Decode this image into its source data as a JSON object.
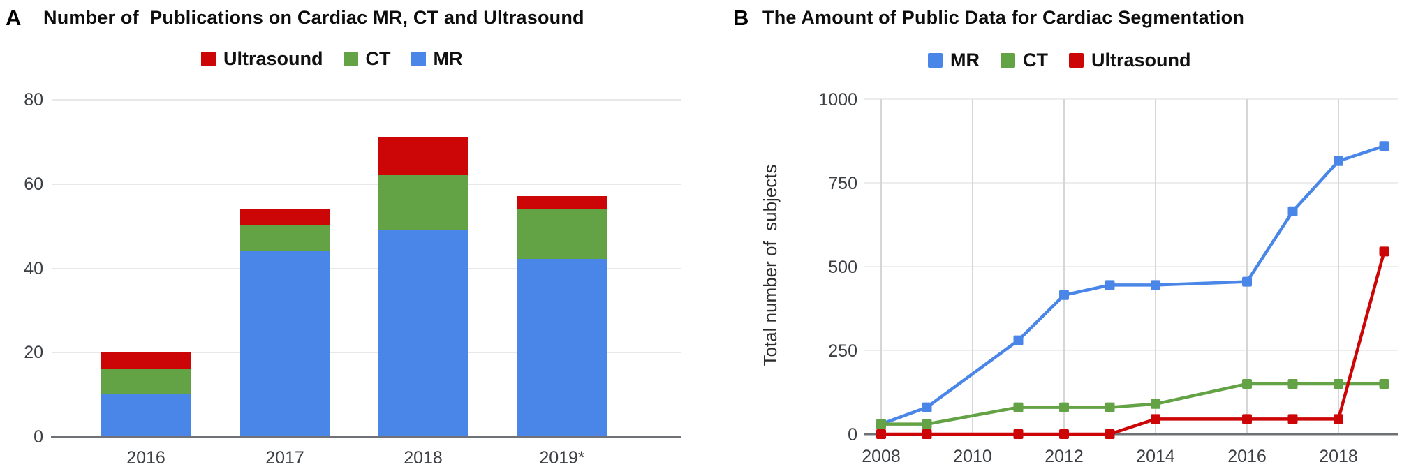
{
  "panels": {
    "a": {
      "label": "A"
    },
    "b": {
      "b_label": "B"
    }
  },
  "colors": {
    "mr_blue": "#4a86e8",
    "ct_green": "#63a245",
    "ultrasound_red": "#cc0606",
    "gridline_light": "#e8e8e8",
    "gridline_vertical": "#d6d6d6",
    "axis_gray": "#6e7276"
  },
  "chart_data": [
    {
      "id": "publications-by-modality",
      "type": "bar",
      "stacked": true,
      "title": "Number of  Publications on Cardiac MR, CT and Ultrasound",
      "categories": [
        "2016",
        "2017",
        "2018",
        "2019*"
      ],
      "series": [
        {
          "name": "MR",
          "color": "#4a86e8",
          "values": [
            10,
            44,
            49,
            42
          ]
        },
        {
          "name": "CT",
          "color": "#63a245",
          "values": [
            6,
            6,
            13,
            12
          ]
        },
        {
          "name": "Ultrasound",
          "color": "#cc0606",
          "values": [
            4,
            4,
            9,
            3
          ]
        }
      ],
      "legend": [
        {
          "label": "Ultrasound",
          "color": "#cc0606"
        },
        {
          "label": "CT",
          "color": "#63a245"
        },
        {
          "label": "MR",
          "color": "#4a86e8"
        }
      ],
      "legend_position": "top",
      "xlabel": "",
      "ylabel": "",
      "ylim": [
        0,
        80
      ],
      "yticks": [
        0,
        20,
        40,
        60,
        80
      ],
      "grid": "horizontal"
    },
    {
      "id": "public-data-for-segmentation",
      "type": "line",
      "title": "The Amount of Public Data for Cardiac Segmentation",
      "ylabel": "Total number of  subjects",
      "xlabel": "",
      "x": [
        2008,
        2009,
        2011,
        2012,
        2013,
        2014,
        2016,
        2017,
        2018,
        2019
      ],
      "series": [
        {
          "name": "MR",
          "color": "#4a86e8",
          "values": [
            30,
            80,
            280,
            415,
            445,
            445,
            455,
            665,
            815,
            860
          ]
        },
        {
          "name": "CT",
          "color": "#63a245",
          "values": [
            30,
            30,
            80,
            80,
            80,
            90,
            150,
            150,
            150,
            150
          ]
        },
        {
          "name": "Ultrasound",
          "color": "#cc0606",
          "values": [
            0,
            0,
            0,
            0,
            0,
            45,
            45,
            45,
            45,
            545
          ]
        }
      ],
      "legend": [
        {
          "label": "MR",
          "color": "#4a86e8"
        },
        {
          "label": "CT",
          "color": "#63a245"
        },
        {
          "label": "Ultrasound",
          "color": "#cc0606"
        }
      ],
      "legend_position": "top",
      "marker": "square",
      "xlim": [
        2007.5,
        2019.5
      ],
      "xticks": [
        2008,
        2010,
        2012,
        2014,
        2016,
        2018
      ],
      "ylim": [
        0,
        1000
      ],
      "yticks": [
        0,
        250,
        500,
        750,
        1000
      ],
      "grid": "both"
    }
  ]
}
